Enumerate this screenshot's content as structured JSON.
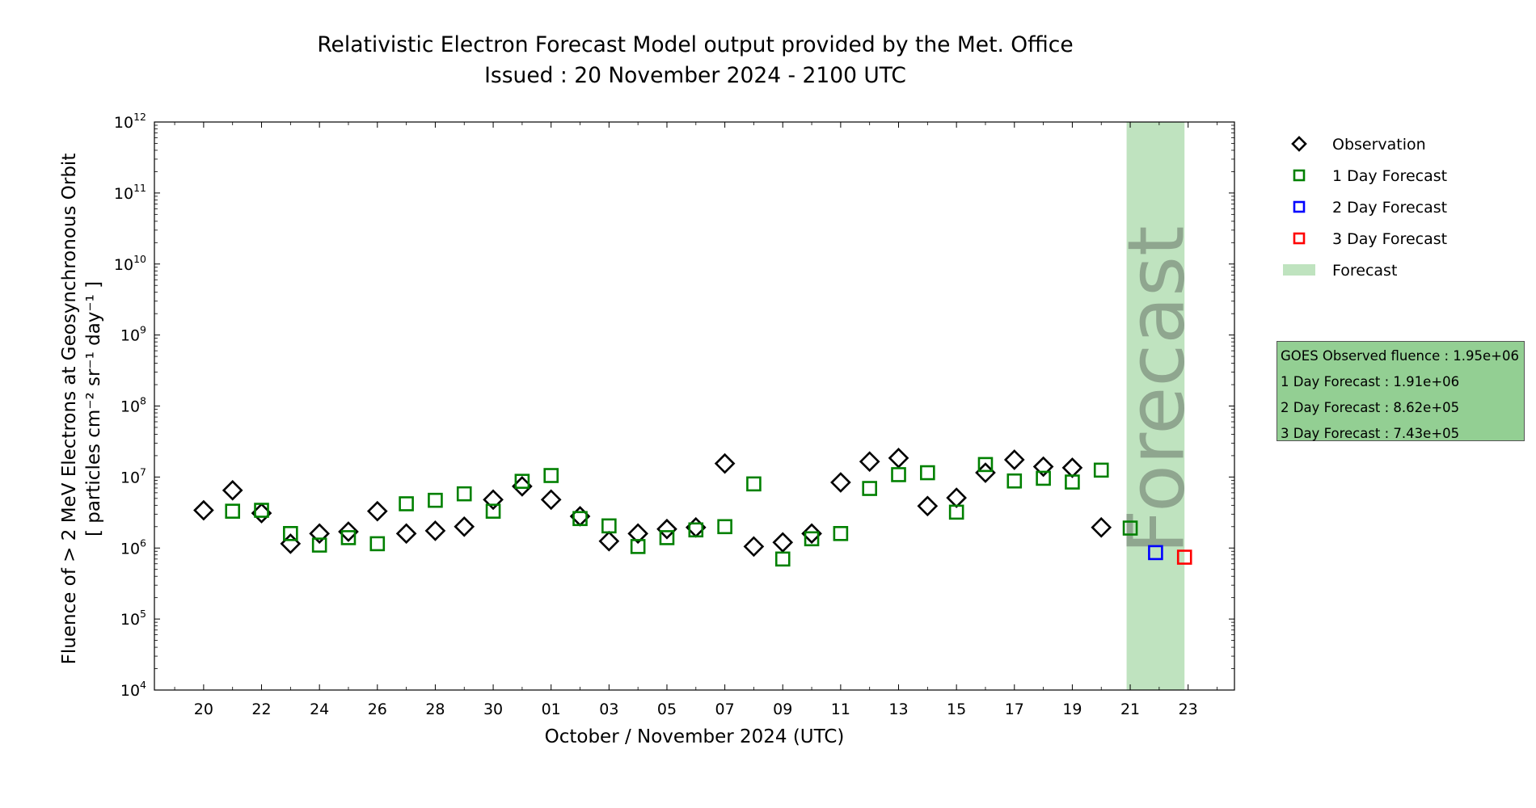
{
  "chart_data": {
    "type": "scatter",
    "title": [
      "Relativistic Electron Forecast Model output provided by the Met. Office",
      "Issued : 20 November 2024 - 2100 UTC"
    ],
    "xlabel": "October / November 2024 (UTC)",
    "ylabel": {
      "line1": "Fluence of > 2 MeV Electrons at Geosynchronous Orbit",
      "line2": "[ particles cm⁻² sr⁻¹ day⁻¹ ]"
    },
    "y_scale": "log",
    "ylim": [
      "1e4",
      "1e12"
    ],
    "y_ticks": [
      {
        "base": "10",
        "exp": "4",
        "value": 10000.0
      },
      {
        "base": "10",
        "exp": "5",
        "value": 100000.0
      },
      {
        "base": "10",
        "exp": "6",
        "value": 1000000.0
      },
      {
        "base": "10",
        "exp": "7",
        "value": 10000000.0
      },
      {
        "base": "10",
        "exp": "8",
        "value": 100000000.0
      },
      {
        "base": "10",
        "exp": "9",
        "value": 1000000000.0
      },
      {
        "base": "10",
        "exp": "10",
        "value": 10000000000.0
      },
      {
        "base": "10",
        "exp": "11",
        "value": 100000000000.0
      },
      {
        "base": "10",
        "exp": "12",
        "value": 1000000000000.0
      }
    ],
    "xlim": [
      "2024-10-18.3",
      "2024-11-24.6"
    ],
    "x_ticks": [
      {
        "label": "20",
        "date": "2024-10-20"
      },
      {
        "label": "22",
        "date": "2024-10-22"
      },
      {
        "label": "24",
        "date": "2024-10-24"
      },
      {
        "label": "26",
        "date": "2024-10-26"
      },
      {
        "label": "28",
        "date": "2024-10-28"
      },
      {
        "label": "30",
        "date": "2024-10-30"
      },
      {
        "label": "01",
        "date": "2024-11-01"
      },
      {
        "label": "03",
        "date": "2024-11-03"
      },
      {
        "label": "05",
        "date": "2024-11-05"
      },
      {
        "label": "07",
        "date": "2024-11-07"
      },
      {
        "label": "09",
        "date": "2024-11-09"
      },
      {
        "label": "11",
        "date": "2024-11-11"
      },
      {
        "label": "13",
        "date": "2024-11-13"
      },
      {
        "label": "15",
        "date": "2024-11-15"
      },
      {
        "label": "17",
        "date": "2024-11-17"
      },
      {
        "label": "19",
        "date": "2024-11-19"
      },
      {
        "label": "21",
        "date": "2024-11-21"
      },
      {
        "label": "23",
        "date": "2024-11-23"
      }
    ],
    "forecast_band": {
      "start": "2024-11-20 21:00",
      "end": "2024-11-22 21:00",
      "label": "Forecast",
      "color": "#bfe3bf"
    },
    "series": [
      {
        "name": "Observation",
        "marker": "diamond",
        "color": "#000000",
        "points": [
          {
            "x": "2024-10-20",
            "y": 3400000.0
          },
          {
            "x": "2024-10-21",
            "y": 6500000.0
          },
          {
            "x": "2024-10-22",
            "y": 3100000.0
          },
          {
            "x": "2024-10-23",
            "y": 1150000.0
          },
          {
            "x": "2024-10-24",
            "y": 1600000.0
          },
          {
            "x": "2024-10-25",
            "y": 1700000.0
          },
          {
            "x": "2024-10-26",
            "y": 3300000.0
          },
          {
            "x": "2024-10-27",
            "y": 1600000.0
          },
          {
            "x": "2024-10-28",
            "y": 1750000.0
          },
          {
            "x": "2024-10-29",
            "y": 2000000.0
          },
          {
            "x": "2024-10-30",
            "y": 4800000.0
          },
          {
            "x": "2024-10-31",
            "y": 7400000.0
          },
          {
            "x": "2024-11-01",
            "y": 4800000.0
          },
          {
            "x": "2024-11-02",
            "y": 2800000.0
          },
          {
            "x": "2024-11-03",
            "y": 1250000.0
          },
          {
            "x": "2024-11-04",
            "y": 1600000.0
          },
          {
            "x": "2024-11-05",
            "y": 1850000.0
          },
          {
            "x": "2024-11-06",
            "y": 1950000.0
          },
          {
            "x": "2024-11-07",
            "y": 15500000.0
          },
          {
            "x": "2024-11-08",
            "y": 1050000.0
          },
          {
            "x": "2024-11-09",
            "y": 1200000.0
          },
          {
            "x": "2024-11-10",
            "y": 1600000.0
          },
          {
            "x": "2024-11-11",
            "y": 8400000.0
          },
          {
            "x": "2024-11-12",
            "y": 16500000.0
          },
          {
            "x": "2024-11-13",
            "y": 18500000.0
          },
          {
            "x": "2024-11-14",
            "y": 3900000.0
          },
          {
            "x": "2024-11-15",
            "y": 5100000.0
          },
          {
            "x": "2024-11-16",
            "y": 11500000.0
          },
          {
            "x": "2024-11-17",
            "y": 17500000.0
          },
          {
            "x": "2024-11-18",
            "y": 14000000.0
          },
          {
            "x": "2024-11-19",
            "y": 13500000.0
          },
          {
            "x": "2024-11-20",
            "y": 1950000.0
          }
        ]
      },
      {
        "name": "1 Day Forecast",
        "marker": "square",
        "color": "#008000",
        "points": [
          {
            "x": "2024-10-21",
            "y": 3300000.0
          },
          {
            "x": "2024-10-22",
            "y": 3400000.0
          },
          {
            "x": "2024-10-23",
            "y": 1600000.0
          },
          {
            "x": "2024-10-24",
            "y": 1100000.0
          },
          {
            "x": "2024-10-25",
            "y": 1400000.0
          },
          {
            "x": "2024-10-26",
            "y": 1150000.0
          },
          {
            "x": "2024-10-27",
            "y": 4200000.0
          },
          {
            "x": "2024-10-28",
            "y": 4700000.0
          },
          {
            "x": "2024-10-29",
            "y": 5800000.0
          },
          {
            "x": "2024-10-30",
            "y": 3300000.0
          },
          {
            "x": "2024-10-31",
            "y": 8700000.0
          },
          {
            "x": "2024-11-01",
            "y": 10500000.0
          },
          {
            "x": "2024-11-02",
            "y": 2600000.0
          },
          {
            "x": "2024-11-03",
            "y": 2050000.0
          },
          {
            "x": "2024-11-04",
            "y": 1050000.0
          },
          {
            "x": "2024-11-05",
            "y": 1400000.0
          },
          {
            "x": "2024-11-06",
            "y": 1800000.0
          },
          {
            "x": "2024-11-07",
            "y": 2000000.0
          },
          {
            "x": "2024-11-08",
            "y": 8000000.0
          },
          {
            "x": "2024-11-09",
            "y": 700000.0
          },
          {
            "x": "2024-11-10",
            "y": 1350000.0
          },
          {
            "x": "2024-11-11",
            "y": 1600000.0
          },
          {
            "x": "2024-11-12",
            "y": 6900000.0
          },
          {
            "x": "2024-11-13",
            "y": 10800000.0
          },
          {
            "x": "2024-11-14",
            "y": 11500000.0
          },
          {
            "x": "2024-11-15",
            "y": 3200000.0
          },
          {
            "x": "2024-11-16",
            "y": 15000000.0
          },
          {
            "x": "2024-11-17",
            "y": 8800000.0
          },
          {
            "x": "2024-11-18",
            "y": 9600000.0
          },
          {
            "x": "2024-11-19",
            "y": 8500000.0
          },
          {
            "x": "2024-11-20",
            "y": 12500000.0
          },
          {
            "x": "2024-11-21",
            "y": 1910000.0
          }
        ]
      },
      {
        "name": "2 Day Forecast",
        "marker": "square",
        "color": "#0000ff",
        "points": [
          {
            "x": "2024-11-21 21:00",
            "y": 862000.0
          }
        ]
      },
      {
        "name": "3 Day Forecast",
        "marker": "square",
        "color": "#ff0000",
        "points": [
          {
            "x": "2024-11-22 21:00",
            "y": 743000.0
          }
        ]
      }
    ],
    "legend": {
      "position": "right",
      "items": [
        {
          "label": "Observation",
          "marker": "diamond",
          "color": "#000000"
        },
        {
          "label": "1 Day Forecast",
          "marker": "square",
          "color": "#008000"
        },
        {
          "label": "2 Day Forecast",
          "marker": "square",
          "color": "#0000ff"
        },
        {
          "label": "3 Day Forecast",
          "marker": "square",
          "color": "#ff0000"
        },
        {
          "label": "Forecast",
          "marker": "patch",
          "color": "#bfe3bf"
        }
      ]
    },
    "info_box": {
      "lines": [
        "GOES Observed fluence : 1.95e+06",
        "1 Day Forecast : 1.91e+06",
        "2 Day Forecast : 8.62e+05",
        "3 Day Forecast : 7.43e+05"
      ],
      "background": "#93cf93"
    }
  }
}
